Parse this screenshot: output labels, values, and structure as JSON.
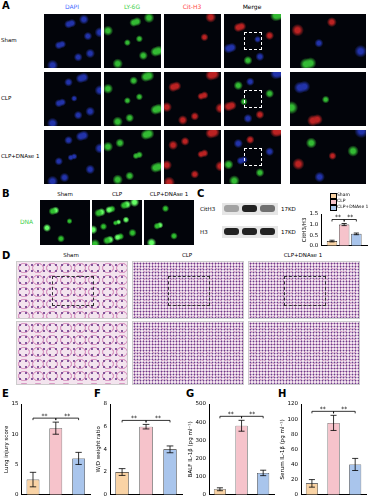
{
  "figure": {
    "A": {
      "letter": "A",
      "columns": [
        "DAPI",
        "LY-6G",
        "Cit-H3",
        "Merge"
      ],
      "rows": [
        "Sham",
        "CLP",
        "CLP+DNAse 1"
      ]
    },
    "B": {
      "letter": "B",
      "row_label": "DNA",
      "columns": [
        "Sham",
        "CLP",
        "CLP+DNAse 1"
      ]
    },
    "C": {
      "letter": "C",
      "blot_rows": [
        {
          "name": "CitH3",
          "size": "17KD"
        },
        {
          "name": "H3",
          "size": "17KD"
        }
      ]
    },
    "D": {
      "letter": "D",
      "columns": [
        "Sham",
        "CLP",
        "CLP+DNAse 1"
      ]
    },
    "E": {
      "letter": "E"
    },
    "F": {
      "letter": "F"
    },
    "G": {
      "letter": "G"
    },
    "H": {
      "letter": "H"
    }
  },
  "chart_data": [
    {
      "type": "bar",
      "y_label": "CitH3/H3",
      "categories": [
        null
      ],
      "series": [
        {
          "name": "Sham",
          "color": "#f9d3a5",
          "values": [
            0.22
          ],
          "errors": [
            0.04
          ]
        },
        {
          "name": "CLP",
          "color": "#f6c3cb",
          "values": [
            1.0
          ],
          "errors": [
            0.05
          ]
        },
        {
          "name": "CLP+DNAse 1",
          "color": "#a9c5ec",
          "values": [
            0.56
          ],
          "errors": [
            0.04
          ]
        }
      ],
      "ylim": [
        0,
        1.5
      ],
      "yticks": [
        {
          "value": 0,
          "label": "0.0"
        },
        {
          "value": 0.5,
          "label": "0.5"
        },
        {
          "value": 1,
          "label": "1.0"
        },
        {
          "value": 1.5,
          "label": "1.5"
        }
      ],
      "grid": false,
      "legend": "top-right",
      "tick_labels": "y",
      "annotations": [
        {
          "text": "**",
          "from": 0,
          "to": 1
        },
        {
          "text": "**",
          "from": 1,
          "to": 2
        }
      ]
    },
    {
      "type": "bar",
      "y_label": "Lung injury score",
      "categories": [
        null,
        null,
        null
      ],
      "values": [
        2.5,
        11,
        6
      ],
      "errors": [
        1.2,
        1.0,
        1.0
      ],
      "colors": [
        "#f9d3a5",
        "#f6c3cb",
        "#a9c5ec"
      ],
      "ylim": [
        0,
        15
      ],
      "yticks": [
        0,
        5,
        10,
        15
      ],
      "grid": false,
      "tick_labels": "y",
      "annotations": [
        {
          "text": "**",
          "from": 0,
          "to": 1
        },
        {
          "text": "**",
          "from": 1,
          "to": 2
        }
      ]
    },
    {
      "type": "bar",
      "y_label": "W/D weight ratio",
      "categories": [
        null,
        null,
        null
      ],
      "values": [
        2,
        6,
        4
      ],
      "errors": [
        0.3,
        0.2,
        0.3
      ],
      "colors": [
        "#f9d3a5",
        "#f6c3cb",
        "#a9c5ec"
      ],
      "ylim": [
        0,
        8
      ],
      "yticks": [
        0,
        2,
        4,
        6,
        8
      ],
      "grid": false,
      "tick_labels": "y",
      "annotations": [
        {
          "text": "**",
          "from": 0,
          "to": 1
        },
        {
          "text": "**",
          "from": 1,
          "to": 2
        }
      ]
    },
    {
      "type": "bar",
      "y_label": "BALF IL-1β (pg ml⁻¹)",
      "categories": [
        null,
        null,
        null
      ],
      "values": [
        30,
        380,
        120
      ],
      "errors": [
        8,
        30,
        15
      ],
      "colors": [
        "#f9d3a5",
        "#f6c3cb",
        "#a9c5ec"
      ],
      "ylim": [
        0,
        500
      ],
      "yticks": [
        0,
        100,
        200,
        300,
        400,
        500
      ],
      "grid": false,
      "tick_labels": "y",
      "annotations": [
        {
          "text": "**",
          "from": 0,
          "to": 1
        },
        {
          "text": "**",
          "from": 1,
          "to": 2
        }
      ]
    },
    {
      "type": "bar",
      "y_label": "Serum IL-1β (pg ml⁻¹)",
      "categories": [
        null,
        null,
        null
      ],
      "values": [
        15,
        95,
        40
      ],
      "errors": [
        5,
        10,
        8
      ],
      "colors": [
        "#f9d3a5",
        "#f6c3cb",
        "#a9c5ec"
      ],
      "ylim": [
        0,
        120
      ],
      "yticks": [
        0,
        20,
        40,
        60,
        80,
        100,
        120
      ],
      "grid": false,
      "tick_labels": "y",
      "annotations": [
        {
          "text": "**",
          "from": 0,
          "to": 1
        },
        {
          "text": "**",
          "from": 1,
          "to": 2
        }
      ]
    }
  ]
}
